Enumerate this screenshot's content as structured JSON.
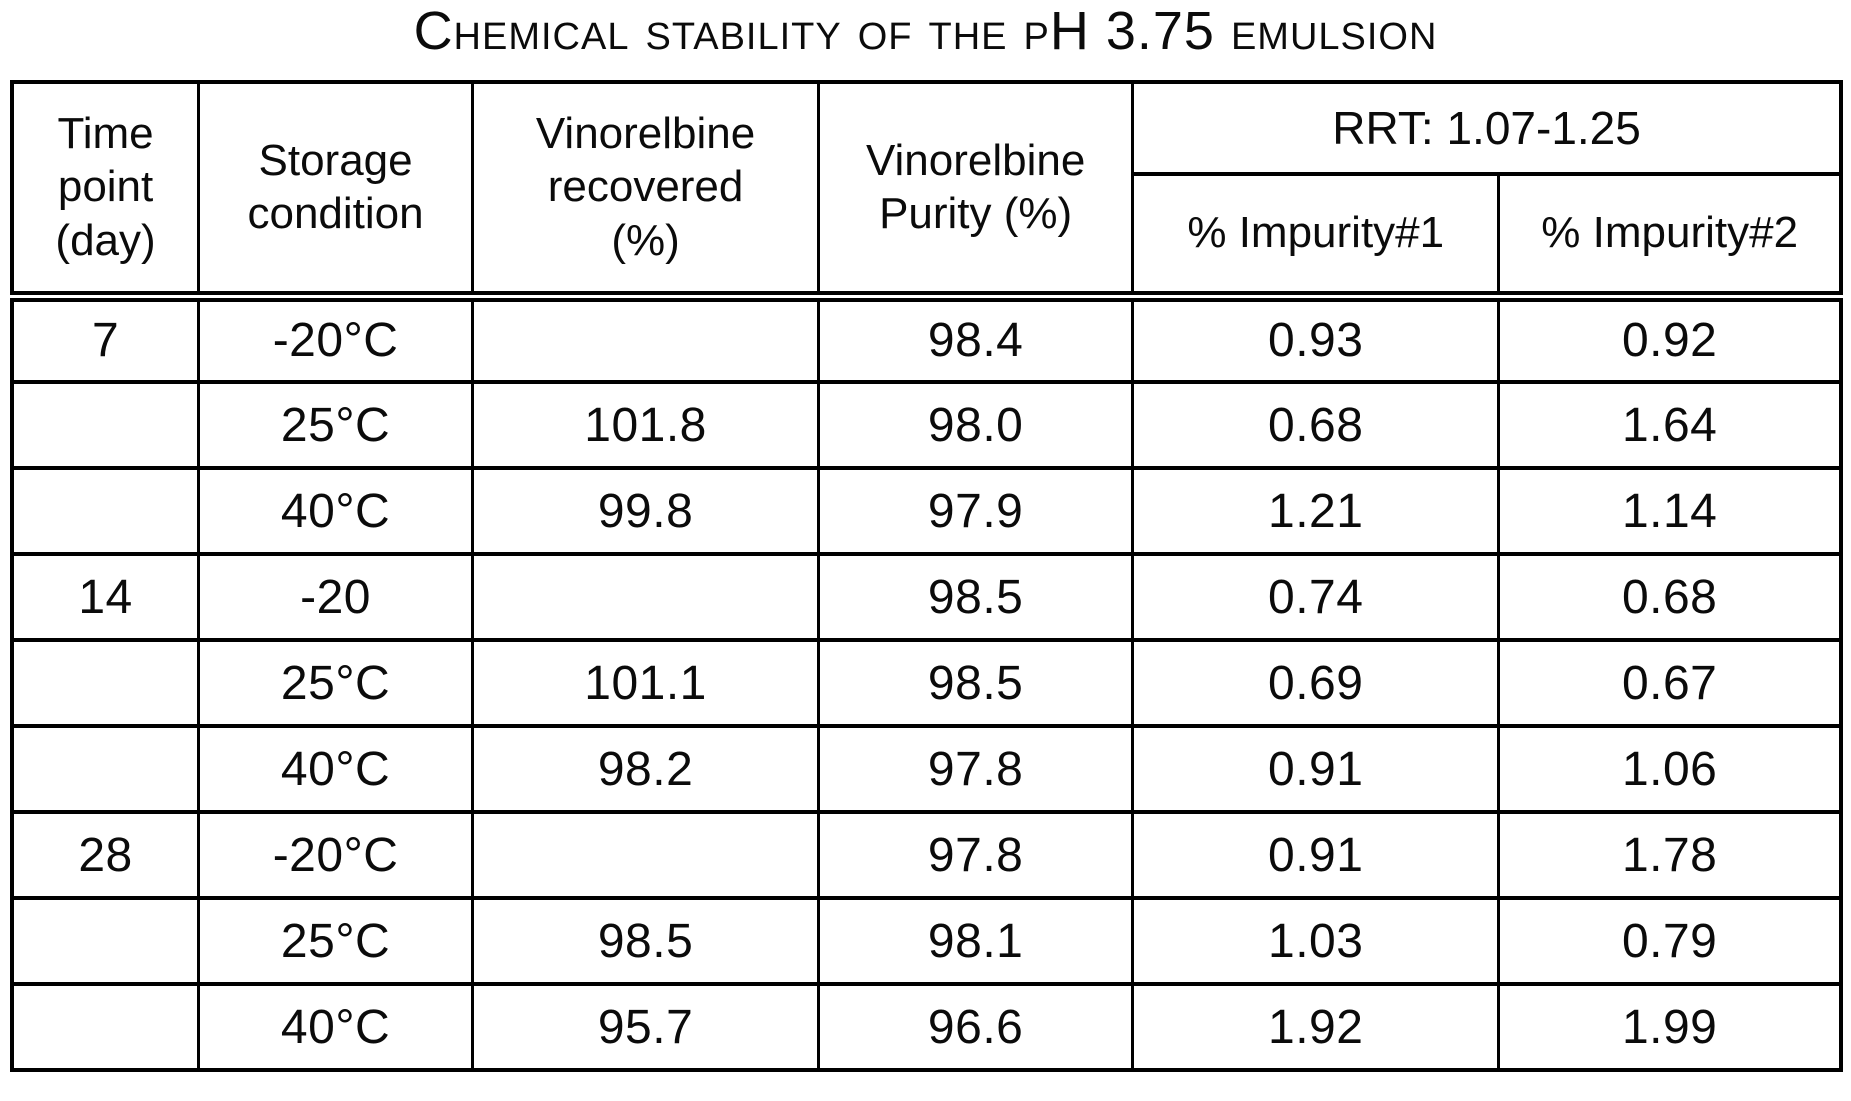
{
  "title": "Chemical stability of the pH 3.75 emulsion",
  "table": {
    "headers": {
      "time_point": "Time\npoint\n(day)",
      "storage_condition": "Storage\ncondition",
      "vinorelbine_recovered": "Vinorelbine\nrecovered\n(%)",
      "vinorelbine_purity": "Vinorelbine\nPurity (%)",
      "rrt_group": "RRT: 1.07-1.25",
      "impurity1": "% Impurity#1",
      "impurity2": "% Impurity#2"
    },
    "rows": [
      [
        "7",
        "-20°C",
        "",
        "98.4",
        "0.93",
        "0.92"
      ],
      [
        "",
        "25°C",
        "101.8",
        "98.0",
        "0.68",
        "1.64"
      ],
      [
        "",
        "40°C",
        "99.8",
        "97.9",
        "1.21",
        "1.14"
      ],
      [
        "14",
        "-20",
        "",
        "98.5",
        "0.74",
        "0.68"
      ],
      [
        "",
        "25°C",
        "101.1",
        "98.5",
        "0.69",
        "0.67"
      ],
      [
        "",
        "40°C",
        "98.2",
        "97.8",
        "0.91",
        "1.06"
      ],
      [
        "28",
        "-20°C",
        "",
        "97.8",
        "0.91",
        "1.78"
      ],
      [
        "",
        "25°C",
        "98.5",
        "98.1",
        "1.03",
        "0.79"
      ],
      [
        "",
        "40°C",
        "95.7",
        "96.6",
        "1.92",
        "1.99"
      ]
    ]
  }
}
